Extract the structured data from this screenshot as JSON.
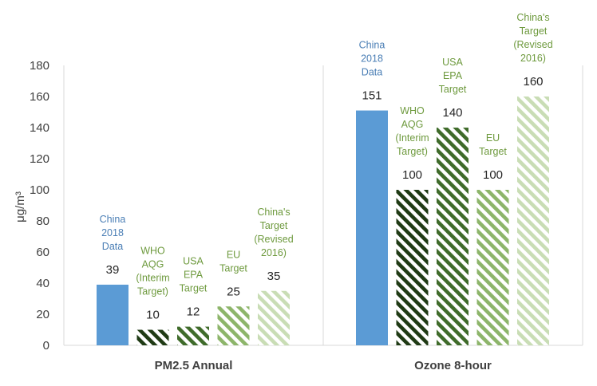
{
  "chart_data": {
    "type": "bar",
    "ylabel": "μg/m³",
    "ylim": [
      0,
      180
    ],
    "yticks": [
      0,
      20,
      40,
      60,
      80,
      100,
      120,
      140,
      160,
      180
    ],
    "grid": false,
    "colors": {
      "china_2018": "#5B9BD5",
      "who": "#1F3A14",
      "usa_epa": "#3F6B2A",
      "eu": "#8DB56A",
      "china_target": "#C9DDB5",
      "label_blue": "#4A7EB5",
      "label_green": "#6E9A3E"
    },
    "groups": [
      {
        "name": "PM2.5 Annual",
        "bars": [
          {
            "label": "China\n2018\nData",
            "value": 39,
            "style": "solid",
            "color": "china_2018",
            "label_color": "label_blue"
          },
          {
            "label": "WHO\nAQG\n(Interim\nTarget)",
            "value": 10,
            "style": "hatch",
            "color": "who",
            "label_color": "label_green"
          },
          {
            "label": "USA\nEPA\nTarget",
            "value": 12,
            "style": "hatch",
            "color": "usa_epa",
            "label_color": "label_green"
          },
          {
            "label": "EU\nTarget",
            "value": 25,
            "style": "hatch",
            "color": "eu",
            "label_color": "label_green"
          },
          {
            "label": "China's\nTarget\n(Revised\n2016)",
            "value": 35,
            "style": "hatch",
            "color": "china_target",
            "label_color": "label_green"
          }
        ]
      },
      {
        "name": "Ozone 8-hour",
        "bars": [
          {
            "label": "China\n2018\nData",
            "value": 151,
            "style": "solid",
            "color": "china_2018",
            "label_color": "label_blue"
          },
          {
            "label": "WHO\nAQG\n(Interim\nTarget)",
            "value": 100,
            "style": "hatch",
            "color": "who",
            "label_color": "label_green"
          },
          {
            "label": "USA\nEPA\nTarget",
            "value": 140,
            "style": "hatch",
            "color": "usa_epa",
            "label_color": "label_green"
          },
          {
            "label": "EU\nTarget",
            "value": 100,
            "style": "hatch",
            "color": "eu",
            "label_color": "label_green"
          },
          {
            "label": "China's\nTarget\n(Revised\n2016)",
            "value": 160,
            "style": "hatch",
            "color": "china_target",
            "label_color": "label_green"
          }
        ]
      }
    ]
  }
}
